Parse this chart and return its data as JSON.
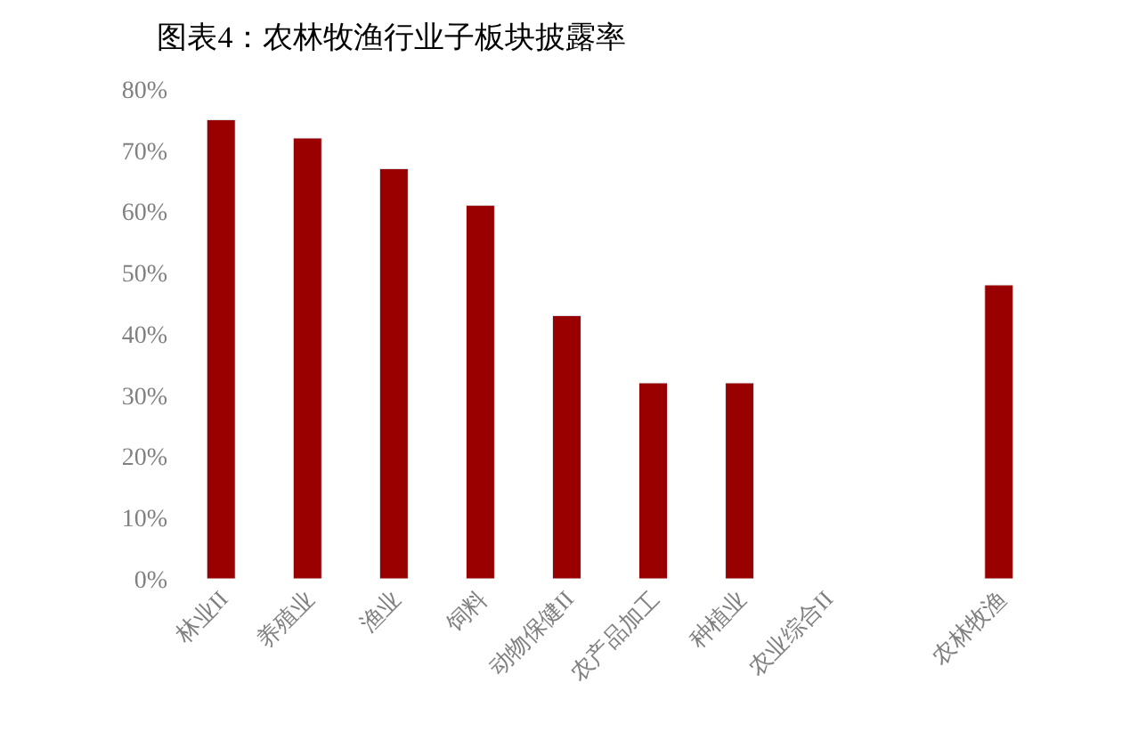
{
  "chart_data": {
    "type": "bar",
    "title": "图表4：农林牧渔行业子板块披露率",
    "categories": [
      "林业II",
      "养殖业",
      "渔业",
      "饲料",
      "动物保健II",
      "农产品加工",
      "种植业",
      "农业综合II",
      null,
      "农林牧渔"
    ],
    "values": [
      75,
      72,
      67,
      61,
      43,
      32,
      32,
      null,
      null,
      48
    ],
    "color": "#990000",
    "ylim": [
      0,
      80
    ],
    "yticks": [
      {
        "value": 0,
        "label": "0%"
      },
      {
        "value": 10,
        "label": "10%"
      },
      {
        "value": 20,
        "label": "20%"
      },
      {
        "value": 30,
        "label": "30%"
      },
      {
        "value": 40,
        "label": "40%"
      },
      {
        "value": 50,
        "label": "50%"
      },
      {
        "value": 60,
        "label": "60%"
      },
      {
        "value": 70,
        "label": "70%"
      },
      {
        "value": 80,
        "label": "80%"
      }
    ],
    "xlabel": null
  }
}
